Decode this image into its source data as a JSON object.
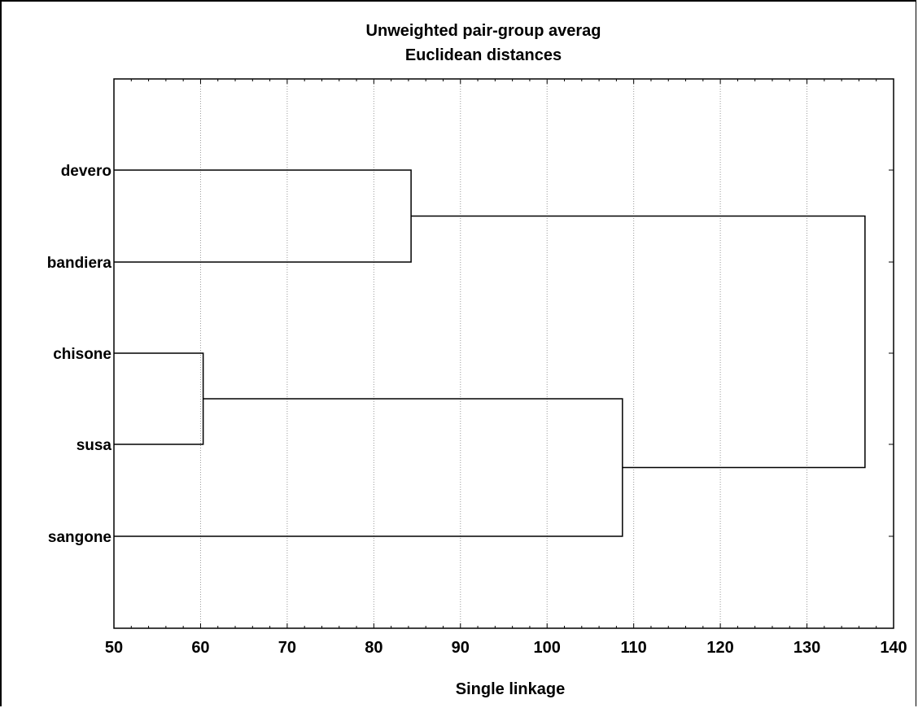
{
  "chart_data": {
    "type": "dendrogram",
    "title_lines": [
      "Unweighted pair-group averag",
      "Euclidean distances"
    ],
    "xlabel": "Single linkage",
    "ylabel": "",
    "xlim": [
      50,
      140
    ],
    "xticks": [
      50,
      60,
      70,
      80,
      90,
      100,
      110,
      120,
      130,
      140
    ],
    "grid": "vertical-dotted",
    "leaves": [
      "devero",
      "bandiera",
      "chisone",
      "susa",
      "sangone"
    ],
    "merges": [
      {
        "left": "devero",
        "right": "bandiera",
        "height": 84.3
      },
      {
        "left": "chisone",
        "right": "susa",
        "height": 60.3
      },
      {
        "left": "chisone+susa",
        "right": "sangone",
        "height": 108.7
      },
      {
        "left": "devero+bandiera",
        "right": "chisone+susa+sangone",
        "height": 136.7
      }
    ]
  }
}
